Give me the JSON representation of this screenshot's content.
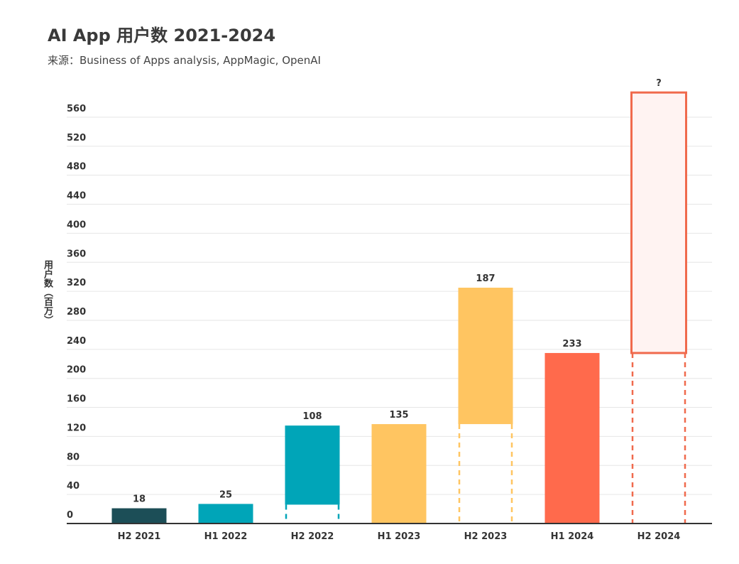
{
  "title": "AI App 用户数  2021-2024",
  "subtitle": "来源：Business of Apps analysis, AppMagic, OpenAI",
  "chart_data": {
    "type": "bar",
    "title": "AI App 用户数  2021-2024",
    "subtitle": "来源：Business of Apps analysis, AppMagic, OpenAI",
    "xlabel": "",
    "ylabel": "用户数（百万）",
    "ylim": [
      0,
      572
    ],
    "yticks": [
      0,
      40,
      80,
      120,
      160,
      200,
      240,
      280,
      320,
      360,
      400,
      440,
      480,
      520,
      560
    ],
    "categories": [
      "H2 2021",
      "H1 2022",
      "H2 2022",
      "H1 2023",
      "H2 2023",
      "H1 2024",
      "H2 2024"
    ],
    "values": [
      18,
      25,
      108,
      135,
      187,
      233,
      null
    ],
    "value_labels": [
      "18",
      "25",
      "108",
      "135",
      "187",
      "233",
      "?"
    ],
    "bar_ranges": [
      [
        0,
        21
      ],
      [
        0,
        27
      ],
      [
        26,
        135
      ],
      [
        0,
        137
      ],
      [
        137,
        325
      ],
      [
        0,
        235
      ],
      [
        235,
        594
      ]
    ],
    "prior_level": [
      null,
      null,
      26,
      null,
      137,
      null,
      235
    ],
    "colors": [
      "#1c4e57",
      "#00a5b8",
      "#00a5b8",
      "#ffc561",
      "#ffc561",
      "#ff6a4c",
      "#fff3f2"
    ],
    "outline_colors": [
      null,
      null,
      null,
      null,
      null,
      null,
      "#f06a4d"
    ],
    "dash_colors": [
      null,
      null,
      "#00a5b8",
      null,
      "#ffc561",
      null,
      "#f06a4d"
    ],
    "grid": true,
    "legend": "none"
  }
}
